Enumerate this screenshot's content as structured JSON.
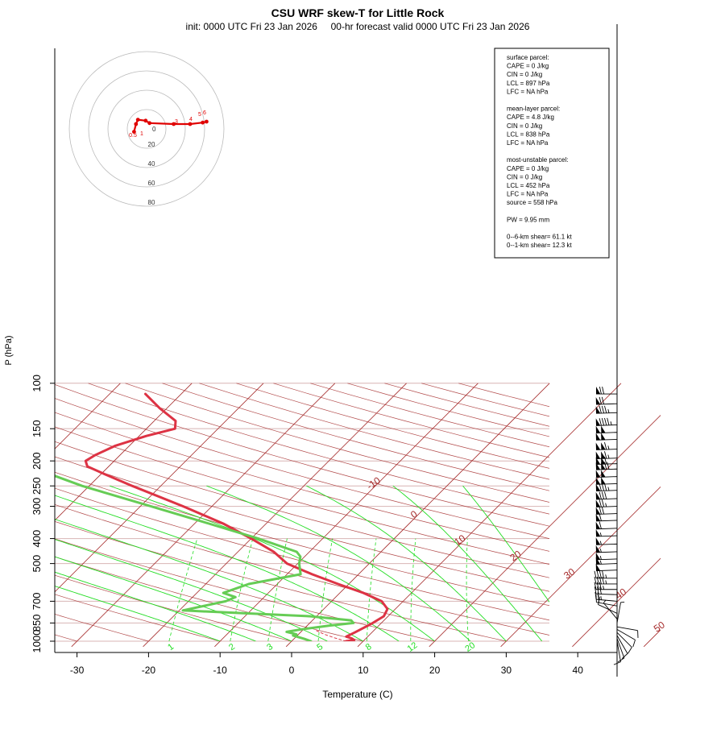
{
  "chart_data": {
    "type": "line",
    "title": "CSU WRF skew-T for Little Rock",
    "subtitle": "init: 0000 UTC Fri 23 Jan 2026     00-hr forecast valid 0000 UTC Fri 23 Jan 2026",
    "xlabel": "Temperature (C)",
    "ylabel": "P (hPa)",
    "xlim": [
      -33,
      45
    ],
    "ylim": [
      1050,
      100
    ],
    "y_scale": "log",
    "x_ticks": [
      "-30",
      "-20",
      "-10",
      "0",
      "10",
      "20",
      "30",
      "40"
    ],
    "y_ticks": [
      "100",
      "150",
      "200",
      "250",
      "300",
      "400",
      "500",
      "700",
      "850",
      "1000"
    ],
    "grid": true,
    "isotherm_labels": [
      "-10",
      "0",
      "10",
      "20",
      "30",
      "40",
      "50"
    ],
    "mixing_ratio_labels": [
      "1",
      "2",
      "3",
      "5",
      "8",
      "12",
      "20"
    ],
    "series": [
      {
        "name": "",
        "color": "#dd3344",
        "points": [
          {
            "p": 1000,
            "t": 7.6
          },
          {
            "p": 990,
            "t": 8.6
          },
          {
            "p": 975,
            "t": 8.0
          },
          {
            "p": 960,
            "t": 7.0
          },
          {
            "p": 925,
            "t": 7.6
          },
          {
            "p": 875,
            "t": 8.4
          },
          {
            "p": 850,
            "t": 8.8
          },
          {
            "p": 800,
            "t": 9.4
          },
          {
            "p": 750,
            "t": 8.9
          },
          {
            "p": 700,
            "t": 7.0
          },
          {
            "p": 650,
            "t": 3.3
          },
          {
            "p": 600,
            "t": -1.5
          },
          {
            "p": 550,
            "t": -6.5
          },
          {
            "p": 500,
            "t": -11.5
          },
          {
            "p": 450,
            "t": -15.0
          },
          {
            "p": 400,
            "t": -20.0
          },
          {
            "p": 350,
            "t": -26.0
          },
          {
            "p": 300,
            "t": -34.0
          },
          {
            "p": 250,
            "t": -44.0
          },
          {
            "p": 225,
            "t": -49.5
          },
          {
            "p": 210,
            "t": -53.0
          },
          {
            "p": 200,
            "t": -54.0
          },
          {
            "p": 190,
            "t": -53.5
          },
          {
            "p": 175,
            "t": -52.0
          },
          {
            "p": 160,
            "t": -49.0
          },
          {
            "p": 150,
            "t": -46.0
          },
          {
            "p": 140,
            "t": -47.0
          },
          {
            "p": 125,
            "t": -51.0
          },
          {
            "p": 110,
            "t": -55.0
          }
        ]
      },
      {
        "name": "",
        "color": "#66cc55",
        "points": [
          {
            "p": 1000,
            "t": 2.7
          },
          {
            "p": 980,
            "t": 1.5
          },
          {
            "p": 950,
            "t": -0.6
          },
          {
            "p": 940,
            "t": -0.3
          },
          {
            "p": 920,
            "t": -2.0
          },
          {
            "p": 900,
            "t": -0.3
          },
          {
            "p": 870,
            "t": 3.1
          },
          {
            "p": 850,
            "t": 6.1
          },
          {
            "p": 830,
            "t": 5.4
          },
          {
            "p": 800,
            "t": -1.0
          },
          {
            "p": 760,
            "t": -19.5
          },
          {
            "p": 700,
            "t": -14.8
          },
          {
            "p": 675,
            "t": -14.0
          },
          {
            "p": 650,
            "t": -16.3
          },
          {
            "p": 600,
            "t": -14.0
          },
          {
            "p": 550,
            "t": -8.1
          },
          {
            "p": 500,
            "t": -9.8
          },
          {
            "p": 470,
            "t": -10.6
          },
          {
            "p": 450,
            "t": -11.8
          },
          {
            "p": 400,
            "t": -19.0
          },
          {
            "p": 350,
            "t": -28.0
          },
          {
            "p": 300,
            "t": -38.5
          },
          {
            "p": 250,
            "t": -51.0
          },
          {
            "p": 200,
            "t": -64.0
          },
          {
            "p": 175,
            "t": -70.0
          }
        ]
      },
      {
        "name": "",
        "color": "#dd3344",
        "style": "dashed",
        "points": [
          {
            "p": 1000,
            "t": 7.6
          },
          {
            "p": 970,
            "t": 5.5
          },
          {
            "p": 940,
            "t": 3.6
          },
          {
            "p": 910,
            "t": 2.0
          }
        ]
      }
    ],
    "wind_barbs": [
      {
        "p": 110,
        "dir": 270,
        "kt": 70
      },
      {
        "p": 120,
        "dir": 268,
        "kt": 70
      },
      {
        "p": 130,
        "dir": 268,
        "kt": 85
      },
      {
        "p": 145,
        "dir": 268,
        "kt": 95
      },
      {
        "p": 155,
        "dir": 268,
        "kt": 100
      },
      {
        "p": 165,
        "dir": 268,
        "kt": 100
      },
      {
        "p": 180,
        "dir": 268,
        "kt": 115
      },
      {
        "p": 195,
        "dir": 268,
        "kt": 115
      },
      {
        "p": 205,
        "dir": 268,
        "kt": 110
      },
      {
        "p": 215,
        "dir": 268,
        "kt": 120
      },
      {
        "p": 230,
        "dir": 268,
        "kt": 100
      },
      {
        "p": 245,
        "dir": 268,
        "kt": 100
      },
      {
        "p": 260,
        "dir": 268,
        "kt": 85
      },
      {
        "p": 280,
        "dir": 268,
        "kt": 80
      },
      {
        "p": 300,
        "dir": 268,
        "kt": 75
      },
      {
        "p": 320,
        "dir": 268,
        "kt": 70
      },
      {
        "p": 340,
        "dir": 268,
        "kt": 60
      },
      {
        "p": 365,
        "dir": 268,
        "kt": 60
      },
      {
        "p": 390,
        "dir": 268,
        "kt": 55
      },
      {
        "p": 420,
        "dir": 268,
        "kt": 55
      },
      {
        "p": 450,
        "dir": 268,
        "kt": 55
      },
      {
        "p": 480,
        "dir": 268,
        "kt": 55
      },
      {
        "p": 500,
        "dir": 268,
        "kt": 55
      },
      {
        "p": 530,
        "dir": 268,
        "kt": 50
      },
      {
        "p": 570,
        "dir": 270,
        "kt": 45
      },
      {
        "p": 600,
        "dir": 270,
        "kt": 45
      },
      {
        "p": 630,
        "dir": 270,
        "kt": 35
      },
      {
        "p": 660,
        "dir": 272,
        "kt": 30
      },
      {
        "p": 700,
        "dir": 275,
        "kt": 25
      },
      {
        "p": 730,
        "dir": 280,
        "kt": 20
      },
      {
        "p": 780,
        "dir": 295,
        "kt": 10
      },
      {
        "p": 820,
        "dir": 320,
        "kt": 5
      },
      {
        "p": 850,
        "dir": 10,
        "kt": 5
      },
      {
        "p": 880,
        "dir": 100,
        "kt": 8
      },
      {
        "p": 900,
        "dir": 120,
        "kt": 10
      },
      {
        "p": 925,
        "dir": 135,
        "kt": 12
      },
      {
        "p": 950,
        "dir": 150,
        "kt": 12
      },
      {
        "p": 975,
        "dir": 160,
        "kt": 10
      },
      {
        "p": 1000,
        "dir": 170,
        "kt": 8
      }
    ],
    "hodograph": {
      "rings": [
        "20",
        "40",
        "60",
        "80"
      ],
      "origin_label": "0",
      "point_labels": [
        "0.5",
        "1",
        "3",
        "4",
        "5",
        "6"
      ],
      "points": [
        {
          "u": -13.0,
          "v": -3.0
        },
        {
          "u": -11.0,
          "v": 5.0
        },
        {
          "u": -9.0,
          "v": 9.5
        },
        {
          "u": -1.0,
          "v": 8.5
        },
        {
          "u": 3.0,
          "v": 6.0
        },
        {
          "u": 28.0,
          "v": 5.0
        },
        {
          "u": 45.0,
          "v": 5.0
        },
        {
          "u": 58.0,
          "v": 6.5
        },
        {
          "u": 62.0,
          "v": 7.5
        }
      ]
    },
    "stats_box": {
      "lines": [
        "surface parcel:",
        "CAPE = 0 J/kg",
        "CIN = 0 J/kg",
        "LCL = 897 hPa",
        "LFC = NA hPa",
        "",
        "mean-layer parcel:",
        "CAPE = 4.8 J/kg",
        "CIN = 0 J/kg",
        "LCL = 838 hPa",
        "LFC = NA hPa",
        "",
        "most-unstable parcel:",
        "CAPE = 0 J/kg",
        "CIN = 0 J/kg",
        "LCL = 452 hPa",
        "LFC = NA hPa",
        "source = 558 hPa",
        "",
        "PW =  9.95 mm",
        "",
        "0--6-km shear= 61.1 kt",
        "0--1-km shear= 12.3 kt"
      ]
    },
    "colors": {
      "temperature": "#dd3344",
      "dewpoint": "#66cc55",
      "isotherms": "#a52a2a",
      "mixing_ratio": "#22dd22",
      "moist_adiabat": "#22dd22",
      "grid": "#d8b4b4"
    }
  }
}
